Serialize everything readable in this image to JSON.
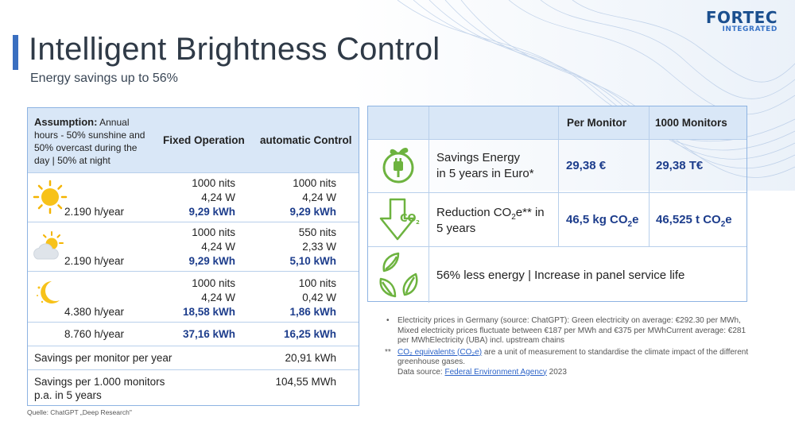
{
  "brand": {
    "name": "FORTEC",
    "sub": "INTEGRATED"
  },
  "header": {
    "title": "Intelligent Brightness Control",
    "subtitle": "Energy savings up to 56%"
  },
  "left_table": {
    "assumption_bold": "Assumption:",
    "assumption_text": " Annual hours - 50% sunshine and 50% overcast during the day | 50% at night",
    "col_fixed": "Fixed Operation",
    "col_auto": "automatic Control",
    "rows": [
      {
        "icon": "sun-icon",
        "hours": "2.190 h/year",
        "fixed": [
          "1000 nits",
          "4,24 W",
          "9,29 kWh"
        ],
        "auto": [
          "1000 nits",
          "4,24 W",
          "9,29 kWh"
        ]
      },
      {
        "icon": "cloud-sun-icon",
        "hours": "2.190 h/year",
        "fixed": [
          "1000 nits",
          "4,24 W",
          "9,29 kWh"
        ],
        "auto": [
          "550 nits",
          "2,33 W",
          "5,10 kWh"
        ]
      },
      {
        "icon": "moon-icon",
        "hours": "4.380 h/year",
        "fixed": [
          "1000 nits",
          "4,24 W",
          "18,58 kWh"
        ],
        "auto": [
          "100 nits",
          "0,42 W",
          "1,86 kWh"
        ]
      }
    ],
    "total": {
      "hours": "8.760 h/year",
      "fixed": "37,16 kWh",
      "auto": "16,25 kWh"
    },
    "savings_year": {
      "label": "Savings per monitor per year",
      "value": "20,91 kWh"
    },
    "savings_5y": {
      "label1": "Savings per 1.000 monitors",
      "label2": "p.a. in 5 years",
      "value": "104,55 MWh"
    }
  },
  "right_table": {
    "col_per": "Per Monitor",
    "col_1000": "1000 Monitors",
    "energy": {
      "line1": "Savings Energy",
      "line2": "in 5 years in Euro*",
      "per": "29,38 €",
      "thousand": "29,38 T€"
    },
    "co2": {
      "line1": "Reduction CO",
      "sub": "2",
      "line1b": "e** in",
      "line2": "5 years",
      "per": "46,5 kg CO",
      "per_tail": "e",
      "thousand": "46,525 t CO",
      "thousand_tail": "e",
      "icon_text": "CO",
      "icon_sub": "2"
    },
    "less": "56% less energy | Increase in panel service life"
  },
  "notes": {
    "n1": "Electricity prices in Germany (source: ChatGPT): Green electricity on average: €292.30 per MWh, Mixed electricity prices fluctuate between €187 per MWh and €375 per MWhCurrent average: €281 per MWhElectricity (UBA) incl. upstream chains",
    "n1_marker": "•",
    "n2_marker": "**",
    "n2_link": "CO₂ equivalents (CO₂e)",
    "n2_text": " are a unit of measurement to standardise the climate impact of the different greenhouse gases.",
    "n2_source_label": "Data source: ",
    "n2_source_link": "Federal Environment Agency",
    "n2_source_year": " 2023"
  },
  "source": "Quelle: ChatGPT „Deep Research\""
}
